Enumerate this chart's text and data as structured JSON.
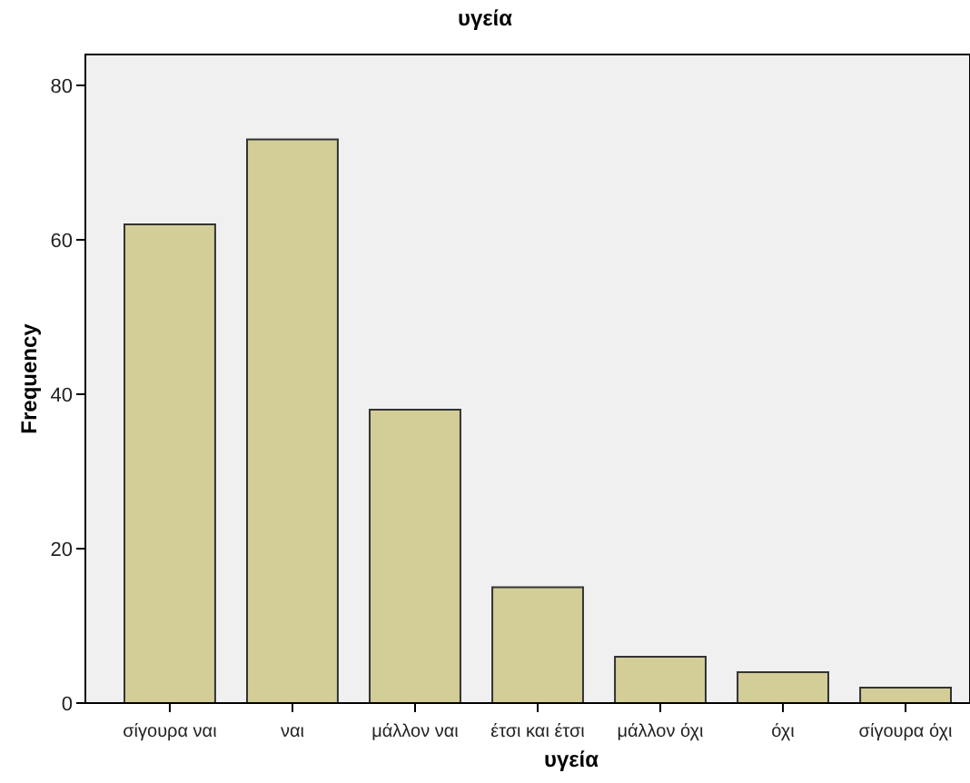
{
  "chart_data": {
    "type": "bar",
    "title": "υγεία",
    "xlabel": "υγεία",
    "ylabel": "Frequency",
    "categories": [
      "σίγουρα ναι",
      "ναι",
      "μάλλον ναι",
      "έτσι και έτσι",
      "μάλλον όχι",
      "όχι",
      "σίγουρα όχι"
    ],
    "values": [
      62,
      73,
      38,
      15,
      6,
      4,
      2
    ],
    "color": "#d3ce97",
    "ylim": [
      0,
      84
    ],
    "yticks": [
      0,
      20,
      40,
      60,
      80
    ],
    "grid": false
  }
}
